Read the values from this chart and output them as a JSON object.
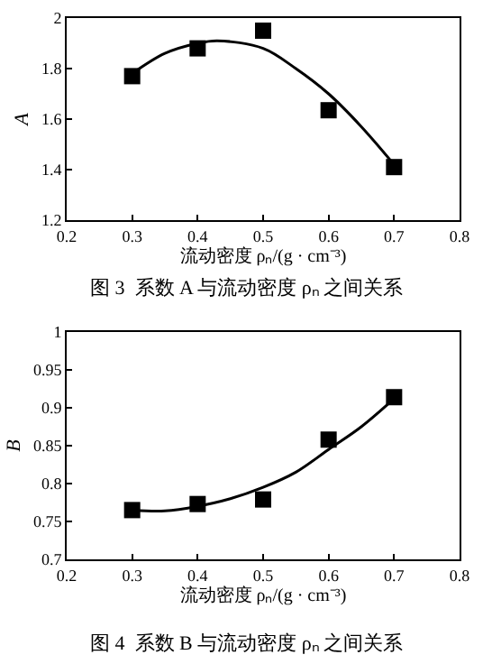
{
  "chart_data": [
    {
      "type": "scatter",
      "title": "图 3  系数 A 与流动密度 ρₙ 之间关系",
      "xlabel": "流动密度 ρₙ/(g · cm⁻³)",
      "ylabel": "A",
      "grid": false,
      "xlim": [
        0.2,
        0.8
      ],
      "xticks": [
        0.2,
        0.3,
        0.4,
        0.5,
        0.6,
        0.7,
        0.8
      ],
      "ylim": [
        1.2,
        2
      ],
      "yticks": [
        1.2,
        1.4,
        1.6,
        1.8,
        2
      ],
      "series": [
        {
          "marker": "square",
          "color": "#000000",
          "x": [
            0.3,
            0.4,
            0.5,
            0.6,
            0.7
          ],
          "values": [
            1.77,
            1.88,
            1.95,
            1.635,
            1.41
          ]
        },
        {
          "type": "line",
          "color": "#000000",
          "x": [
            0.3,
            0.35,
            0.4,
            0.43,
            0.5,
            0.55,
            0.6,
            0.65,
            0.7
          ],
          "values": [
            1.78,
            1.86,
            1.9,
            1.91,
            1.88,
            1.8,
            1.7,
            1.57,
            1.42
          ]
        }
      ]
    },
    {
      "type": "scatter",
      "title": "图 4  系数 B 与流动密度 ρₙ 之间关系",
      "xlabel": "流动密度 ρₙ/(g · cm⁻³)",
      "ylabel": "B",
      "grid": false,
      "xlim": [
        0.2,
        0.8
      ],
      "xticks": [
        0.2,
        0.3,
        0.4,
        0.5,
        0.6,
        0.7,
        0.8
      ],
      "ylim": [
        0.7,
        1
      ],
      "yticks": [
        0.7,
        0.75,
        0.8,
        0.85,
        0.9,
        0.95,
        1
      ],
      "series": [
        {
          "marker": "square",
          "color": "#000000",
          "x": [
            0.3,
            0.4,
            0.5,
            0.6,
            0.7
          ],
          "values": [
            0.765,
            0.773,
            0.779,
            0.858,
            0.914
          ]
        },
        {
          "type": "line",
          "color": "#000000",
          "x": [
            0.3,
            0.35,
            0.4,
            0.45,
            0.5,
            0.55,
            0.6,
            0.65,
            0.7
          ],
          "values": [
            0.765,
            0.764,
            0.77,
            0.78,
            0.795,
            0.815,
            0.845,
            0.875,
            0.912
          ]
        }
      ]
    }
  ]
}
